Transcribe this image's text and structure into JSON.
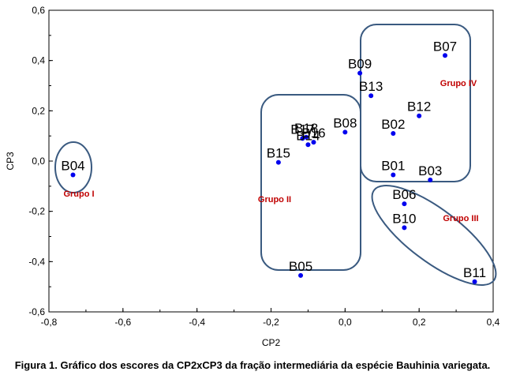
{
  "caption": "Figura 1. Gráfico dos escores da CP2xCP3 da fração intermediária da espécie Bauhinia variegata.",
  "colors": {
    "points": "#0000ee",
    "group_outline": "#3a5a80",
    "group_label": "#c00000",
    "axes": "#000000"
  },
  "chart_data": {
    "type": "scatter",
    "title": "",
    "xlabel": "CP2",
    "ylabel": "CP3",
    "xlim": [
      -0.8,
      0.4
    ],
    "ylim": [
      -0.6,
      0.6
    ],
    "xticks": [
      -0.8,
      -0.6,
      -0.4,
      -0.2,
      0.0,
      0.2,
      0.4
    ],
    "yticks": [
      -0.6,
      -0.4,
      -0.2,
      0.0,
      0.2,
      0.4,
      0.6
    ],
    "xtick_labels": [
      "-0,8",
      "-0,6",
      "-0,4",
      "-0,2",
      "0,0",
      "0,2",
      "0,4"
    ],
    "ytick_labels": [
      "-0,6",
      "-0,4",
      "-0,2",
      "0,0",
      "0,2",
      "0,4",
      "0,6"
    ],
    "grid": false,
    "points": [
      {
        "label": "B04",
        "x": -0.735,
        "y": -0.055
      },
      {
        "label": "B15",
        "x": -0.18,
        "y": -0.005
      },
      {
        "label": "B17",
        "x": -0.115,
        "y": 0.09
      },
      {
        "label": "B18",
        "x": -0.105,
        "y": 0.095
      },
      {
        "label": "B14",
        "x": -0.1,
        "y": 0.065
      },
      {
        "label": "B16",
        "x": -0.085,
        "y": 0.075
      },
      {
        "label": "B08",
        "x": 0.0,
        "y": 0.115
      },
      {
        "label": "B05",
        "x": -0.12,
        "y": -0.455
      },
      {
        "label": "B09",
        "x": 0.04,
        "y": 0.35
      },
      {
        "label": "B13",
        "x": 0.07,
        "y": 0.26
      },
      {
        "label": "B07",
        "x": 0.27,
        "y": 0.42
      },
      {
        "label": "B12",
        "x": 0.2,
        "y": 0.18
      },
      {
        "label": "B02",
        "x": 0.13,
        "y": 0.11
      },
      {
        "label": "B01",
        "x": 0.13,
        "y": -0.055
      },
      {
        "label": "B03",
        "x": 0.23,
        "y": -0.075
      },
      {
        "label": "B06",
        "x": 0.16,
        "y": -0.17
      },
      {
        "label": "B10",
        "x": 0.16,
        "y": -0.265
      },
      {
        "label": "B11",
        "x": 0.35,
        "y": -0.48
      }
    ],
    "groups": [
      {
        "label": "Grupo I"
      },
      {
        "label": "Grupo II"
      },
      {
        "label": "Grupo III"
      },
      {
        "label": "Grupo IV"
      }
    ]
  }
}
